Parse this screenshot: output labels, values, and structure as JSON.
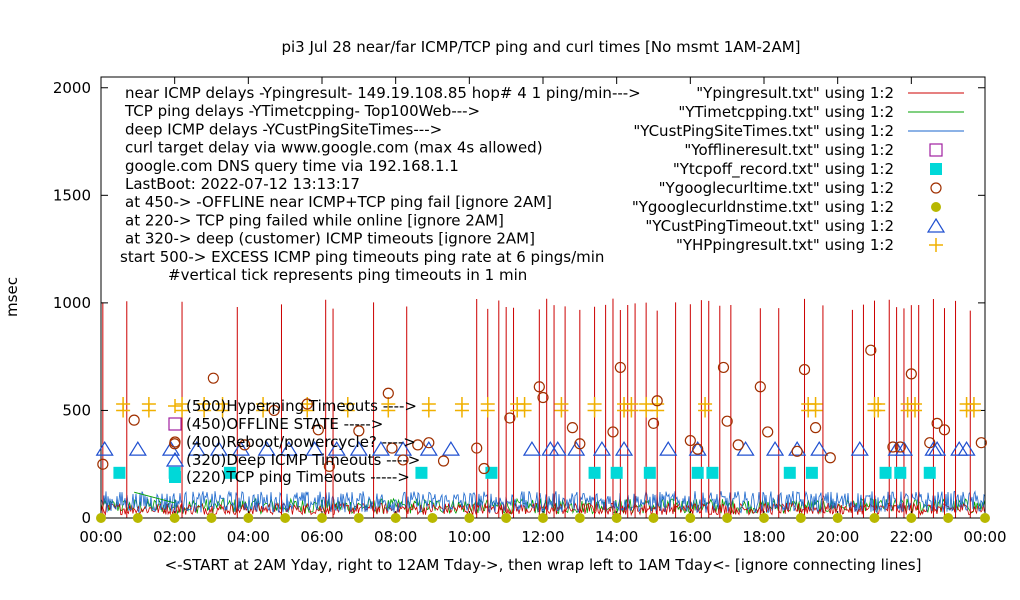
{
  "chart_data": {
    "type": "line",
    "title": "pi3 Jul 28  near/far ICMP/TCP ping and curl times [No msmt 1AM-2AM]",
    "xlabel": "<-START at 2AM Yday, right to 12AM Tday->, then wrap left to 1AM Tday<- [ignore connecting lines]",
    "ylabel": "msec",
    "ylim": [
      0,
      2050
    ],
    "xlim_hours": [
      0,
      24
    ],
    "x_ticks": [
      "00:00",
      "02:00",
      "04:00",
      "06:00",
      "08:00",
      "10:00",
      "12:00",
      "14:00",
      "16:00",
      "18:00",
      "20:00",
      "22:00",
      "00:00"
    ],
    "y_ticks": [
      "0",
      "500",
      "1000",
      "1500",
      "2000"
    ],
    "grid": false,
    "legend_position": "top-right",
    "info_lines": [
      "near ICMP delays -Ypingresult- 149.19.108.85 hop# 4 1 ping/min--->",
      "TCP ping delays -YTimetcpping- Top100Web--->",
      "deep ICMP delays -YCustPingSiteTimes--->",
      "curl target delay via www.google.com (max 4s allowed)",
      "google.com DNS query time via 192.168.1.1",
      "LastBoot: 2022-07-12 13:13:17",
      "at 450-> -OFFLINE near ICMP+TCP ping fail [ignore 2AM]",
      "at 220-> TCP ping failed while online [ignore 2AM]",
      "at 320-> deep (customer) ICMP timeouts [ignore 2AM]",
      "start 500-> EXCESS ICMP ping timeouts ping rate at 6 pings/min",
      "#vertical tick represents ping timeouts in 1 min"
    ],
    "legend": [
      {
        "label": "\"Ypingresult.txt\" using 1:2",
        "color": "#cc0000",
        "marker": "line"
      },
      {
        "label": "\"YTimetcpping.txt\" using 1:2",
        "color": "#00a000",
        "marker": "line"
      },
      {
        "label": "\"YCustPingSiteTimes.txt\" using 1:2",
        "color": "#1a66cc",
        "marker": "line"
      },
      {
        "label": "\"Yofflineresult.txt\" using 1:2",
        "color": "#a020a0",
        "marker": "open-square"
      },
      {
        "label": "\"Ytcpoff_record.txt\" using 1:2",
        "color": "#00d8d8",
        "marker": "filled-square"
      },
      {
        "label": "\"Ygooglecurltime.txt\" using 1:2",
        "color": "#a03000",
        "marker": "open-circle"
      },
      {
        "label": "\"Ygooglecurldnstime.txt\" using 1:2",
        "color": "#b8b800",
        "marker": "filled-circle"
      },
      {
        "label": "\"YCustPingTimeout.txt\" using 1:2",
        "color": "#2050d0",
        "marker": "open-triangle"
      },
      {
        "label": "\"YHPpingresult.txt\" using 1:2",
        "color": "#f0b000",
        "marker": "plus"
      }
    ],
    "annotations": [
      {
        "text": "(500)Hyperping Timeouts ---->",
        "value": 500,
        "marker": "plus"
      },
      {
        "text": "(450)OFFLINE STATE ----->",
        "value": 450,
        "marker": "open-square"
      },
      {
        "text": "(400)Reboot/powercycle? ---->",
        "value": 400,
        "marker": "open-circle"
      },
      {
        "text": "(320)Deep ICMP Timeouts ---->",
        "value": 320,
        "marker": "open-triangle"
      },
      {
        "text": "(220)TCP ping Timeouts ----->",
        "value": 220,
        "marker": "filled-square"
      }
    ],
    "series_samples": {
      "red_spikes_hours": [
        0.05,
        0.7,
        2.2,
        3.7,
        4.9,
        6.1,
        6.3,
        7.4,
        8.3,
        10.2,
        10.5,
        10.8,
        11.0,
        11.2,
        11.9,
        12.1,
        12.3,
        12.6,
        13.0,
        13.4,
        13.7,
        13.9,
        14.1,
        14.3,
        14.5,
        14.8,
        15.1,
        15.6,
        16.0,
        16.3,
        16.5,
        16.8,
        17.1,
        17.9,
        18.4,
        19.1,
        19.6,
        20.4,
        20.7,
        21.0,
        21.4,
        21.6,
        21.8,
        22.0,
        22.2,
        22.6,
        22.9,
        23.2,
        23.6
      ],
      "tcp_timeouts_hours": [
        0.5,
        2.0,
        3.5,
        8.7,
        10.6,
        13.4,
        14.0,
        14.9,
        16.2,
        16.6,
        18.7,
        19.3,
        21.3,
        21.7,
        22.5
      ],
      "cust_timeouts_hours": [
        0.1,
        1.0,
        1.9,
        2.6,
        3.2,
        3.8,
        4.5,
        5.1,
        5.8,
        6.4,
        7.0,
        7.6,
        8.2,
        8.9,
        9.5,
        11.7,
        12.2,
        12.4,
        12.9,
        13.6,
        14.2,
        15.4,
        16.2,
        17.5,
        18.3,
        18.9,
        19.5,
        20.6,
        21.6,
        21.8,
        22.6,
        22.7,
        23.3,
        23.5
      ],
      "hp_timeouts_hours": [
        0.6,
        1.3,
        2.2,
        2.8,
        3.3,
        4.4,
        5.6,
        6.7,
        7.8,
        8.9,
        9.8,
        10.5,
        11.3,
        11.5,
        12.5,
        13.4,
        14.2,
        14.4,
        14.8,
        15.1,
        16.4,
        19.2,
        19.4,
        21.0,
        21.1,
        21.9,
        22.1,
        23.5,
        23.7
      ],
      "curl_points": [
        [
          0.05,
          250
        ],
        [
          0.9,
          455
        ],
        [
          2.0,
          345
        ],
        [
          3.05,
          650
        ],
        [
          3.9,
          340
        ],
        [
          4.7,
          500
        ],
        [
          5.6,
          530
        ],
        [
          5.9,
          410
        ],
        [
          6.2,
          240
        ],
        [
          7.0,
          405
        ],
        [
          7.8,
          580
        ],
        [
          7.9,
          325
        ],
        [
          8.2,
          270
        ],
        [
          8.6,
          340
        ],
        [
          8.9,
          350
        ],
        [
          9.3,
          265
        ],
        [
          10.2,
          325
        ],
        [
          10.4,
          230
        ],
        [
          11.1,
          465
        ],
        [
          11.9,
          610
        ],
        [
          12.0,
          560
        ],
        [
          12.8,
          420
        ],
        [
          13.0,
          345
        ],
        [
          13.9,
          400
        ],
        [
          14.1,
          700
        ],
        [
          15.0,
          440
        ],
        [
          15.1,
          545
        ],
        [
          16.0,
          360
        ],
        [
          16.2,
          320
        ],
        [
          16.9,
          700
        ],
        [
          17.0,
          450
        ],
        [
          17.3,
          340
        ],
        [
          17.9,
          610
        ],
        [
          18.1,
          400
        ],
        [
          18.9,
          310
        ],
        [
          19.1,
          690
        ],
        [
          19.4,
          420
        ],
        [
          19.8,
          280
        ],
        [
          20.9,
          780
        ],
        [
          21.5,
          330
        ],
        [
          21.7,
          330
        ],
        [
          22.0,
          670
        ],
        [
          22.5,
          350
        ],
        [
          22.7,
          440
        ],
        [
          22.9,
          410
        ],
        [
          23.9,
          350
        ]
      ],
      "dns_points_hours": [
        0.0,
        1.0,
        2.0,
        3.0,
        4.0,
        5.0,
        6.0,
        7.0,
        8.0,
        9.0,
        10.0,
        11.0,
        12.0,
        13.0,
        14.0,
        15.0,
        16.0,
        17.0,
        18.0,
        19.0,
        20.0,
        21.0,
        22.0,
        23.0,
        24.0
      ]
    }
  }
}
